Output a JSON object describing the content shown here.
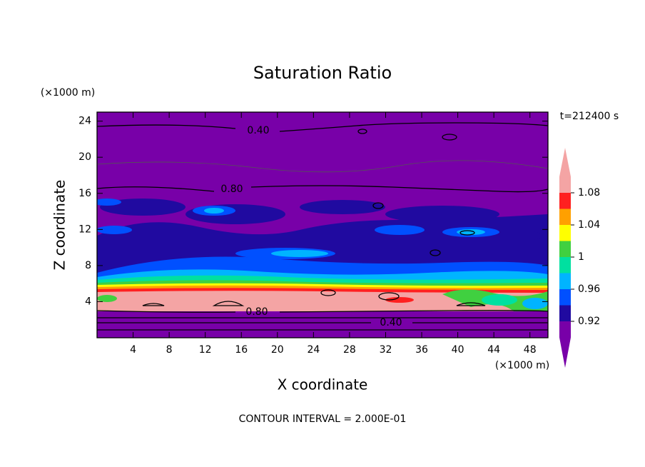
{
  "chart_data": {
    "type": "contour",
    "title": "Saturation Ratio",
    "x_label": "X coordinate",
    "y_label": "Z coordinate",
    "x_unit": "(×1000 m)",
    "y_unit": "(×1000 m)",
    "time_label": "t=212400 s",
    "footer": "CONTOUR INTERVAL = 2.000E-01",
    "xlim": [
      0,
      50
    ],
    "xticks": [
      4,
      8,
      12,
      16,
      20,
      24,
      28,
      32,
      36,
      40,
      44,
      48
    ],
    "ylim": [
      0,
      25
    ],
    "yticks": [
      4,
      8,
      12,
      16,
      20,
      24
    ],
    "colorbar": {
      "levels": [
        0.9,
        0.92,
        0.94,
        0.96,
        0.98,
        1.0,
        1.02,
        1.04,
        1.06,
        1.08,
        1.1
      ],
      "colors": [
        "#7800a8",
        "#200aa0",
        "#0050ff",
        "#00b4ff",
        "#00e0a0",
        "#40d040",
        "#ffff00",
        "#ffa000",
        "#ff2020",
        "#f4a4a4"
      ],
      "ticks": [
        0.92,
        0.96,
        1,
        1.04,
        1.08
      ]
    },
    "contour_labels": [
      {
        "value": 0.4,
        "label": "0.40"
      },
      {
        "value": 0.8,
        "label": "0.80"
      },
      {
        "value": 0.8,
        "label": "0.80"
      },
      {
        "value": 0.4,
        "label": "0.40"
      }
    ]
  }
}
